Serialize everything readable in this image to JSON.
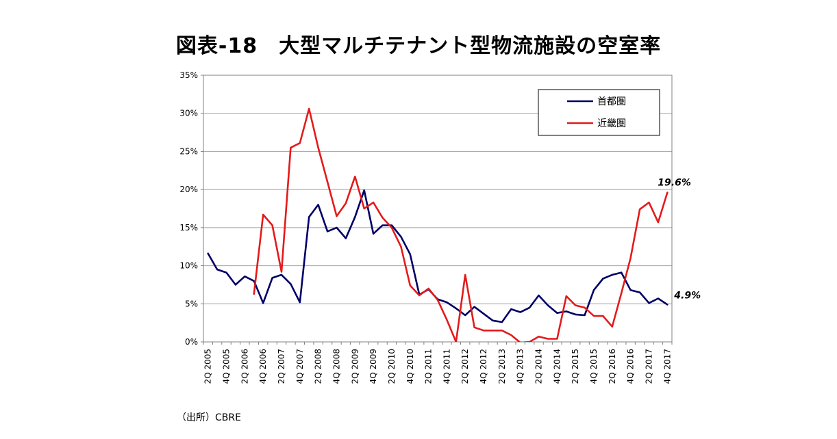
{
  "title": "図表-18　大型マルチテナント型物流施設の空室率",
  "source": "（出所）CBRE",
  "chart_data": {
    "type": "line",
    "title": "図表-18　大型マルチテナント型物流施設の空室率",
    "xlabel": "",
    "ylabel": "",
    "ylim": [
      0,
      35
    ],
    "yticks": [
      "0%",
      "5%",
      "10%",
      "15%",
      "20%",
      "25%",
      "30%",
      "35%"
    ],
    "grid": "horizontal",
    "legend_position": "top-right",
    "categories": [
      "2Q 2005",
      "3Q 2005",
      "4Q 2005",
      "1Q 2006",
      "2Q 2006",
      "3Q 2006",
      "4Q 2006",
      "1Q 2007",
      "2Q 2007",
      "3Q 2007",
      "4Q 2007",
      "1Q 2008",
      "2Q 2008",
      "3Q 2008",
      "4Q 2008",
      "1Q 2009",
      "2Q 2009",
      "3Q 2009",
      "4Q 2009",
      "1Q 2010",
      "2Q 2010",
      "3Q 2010",
      "4Q 2010",
      "1Q 2011",
      "2Q 2011",
      "3Q 2011",
      "4Q 2011",
      "1Q 2012",
      "2Q 2012",
      "3Q 2012",
      "4Q 2012",
      "1Q 2013",
      "2Q 2013",
      "3Q 2013",
      "4Q 2013",
      "1Q 2014",
      "2Q 2014",
      "3Q 2014",
      "4Q 2014",
      "1Q 2015",
      "2Q 2015",
      "3Q 2015",
      "4Q 2015",
      "1Q 2016",
      "2Q 2016",
      "3Q 2016",
      "4Q 2016",
      "1Q 2017",
      "2Q 2017",
      "3Q 2017",
      "4Q 2017"
    ],
    "tick_labels": [
      "2Q 2005",
      "4Q 2005",
      "2Q 2006",
      "4Q 2006",
      "2Q 2007",
      "4Q 2007",
      "2Q 2008",
      "4Q 2008",
      "2Q 2009",
      "4Q 2009",
      "2Q 2010",
      "4Q 2010",
      "2Q 2011",
      "4Q 2011",
      "2Q 2012",
      "4Q 2012",
      "2Q 2013",
      "4Q 2013",
      "2Q 2014",
      "4Q 2014",
      "2Q 2015",
      "4Q 2015",
      "2Q 2016",
      "4Q 2016",
      "2Q 2017",
      "4Q 2017"
    ],
    "series": [
      {
        "name": "首都圏",
        "color": "#000066",
        "values": [
          11.6,
          9.5,
          9.1,
          7.5,
          8.6,
          8.0,
          5.1,
          8.4,
          8.8,
          7.6,
          5.2,
          16.4,
          18.0,
          14.5,
          15.0,
          13.6,
          16.4,
          19.9,
          14.2,
          15.3,
          15.3,
          13.8,
          11.5,
          6.2,
          6.9,
          5.6,
          5.2,
          4.4,
          3.5,
          4.6,
          3.7,
          2.8,
          2.6,
          4.3,
          3.9,
          4.5,
          6.1,
          4.8,
          3.8,
          4.0,
          3.6,
          3.5,
          6.8,
          8.3,
          8.8,
          9.1,
          6.8,
          6.5,
          5.1,
          5.7,
          4.9
        ],
        "end_label": "4.9%"
      },
      {
        "name": "近畿圏",
        "color": "#e41a1a",
        "values": [
          null,
          null,
          null,
          null,
          null,
          6.3,
          16.7,
          15.3,
          9.2,
          25.5,
          26.1,
          30.6,
          25.5,
          21.0,
          16.5,
          18.2,
          21.7,
          17.5,
          18.3,
          16.3,
          15.0,
          12.5,
          7.4,
          6.1,
          7.0,
          5.5,
          2.9,
          0.0,
          8.8,
          1.9,
          1.5,
          1.5,
          1.5,
          0.9,
          -0.1,
          0.0,
          0.7,
          0.4,
          0.4,
          6.0,
          4.8,
          4.5,
          3.4,
          3.4,
          2.0,
          6.4,
          11.0,
          17.4,
          18.3,
          15.7,
          19.6
        ],
        "end_label": "19.6%"
      }
    ]
  }
}
